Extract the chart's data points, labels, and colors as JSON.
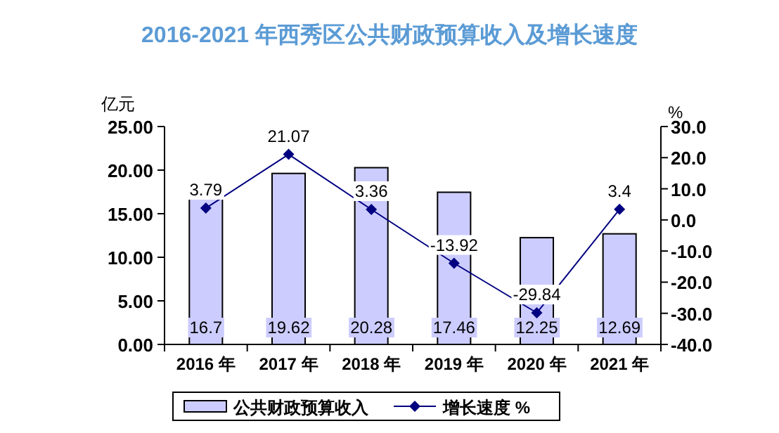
{
  "chart_data": {
    "type": "bar",
    "title": "2016-2021 年西秀区公共财政预算收入及增长速度",
    "ylabel": "亿元",
    "y2label": "%",
    "categories": [
      "2016 年",
      "2017 年",
      "2018 年",
      "2019 年",
      "2020 年",
      "2021 年"
    ],
    "series": [
      {
        "name": "公共财政预算收入",
        "color": "#ccccff",
        "values": [
          16.7,
          19.62,
          20.28,
          17.46,
          12.25,
          12.69
        ]
      },
      {
        "name": "增长速度 %",
        "type": "line",
        "axis": "y2",
        "color": "#000080",
        "marker": "diamond",
        "values": [
          3.79,
          21.07,
          3.36,
          -13.92,
          -29.84,
          3.4
        ]
      }
    ],
    "ylim": [
      0,
      25
    ],
    "yticks": [
      {
        "value": 0,
        "label": "0.00"
      },
      {
        "value": 5,
        "label": "5.00"
      },
      {
        "value": 10,
        "label": "10.00"
      },
      {
        "value": 15,
        "label": "15.00"
      },
      {
        "value": 20,
        "label": "20.00"
      },
      {
        "value": 25,
        "label": "25.00"
      }
    ],
    "y2lim": [
      -40,
      30
    ],
    "y2ticks": [
      {
        "value": -40,
        "label": "-40.0"
      },
      {
        "value": -30,
        "label": "-30.0"
      },
      {
        "value": -20,
        "label": "-20.0"
      },
      {
        "value": -10,
        "label": "-10.0"
      },
      {
        "value": 0,
        "label": "0.0"
      },
      {
        "value": 10,
        "label": "10.0"
      },
      {
        "value": 20,
        "label": "20.0"
      },
      {
        "value": 30,
        "label": "30.0"
      }
    ],
    "data_labels": true,
    "legend": "bottom",
    "grid": false
  }
}
